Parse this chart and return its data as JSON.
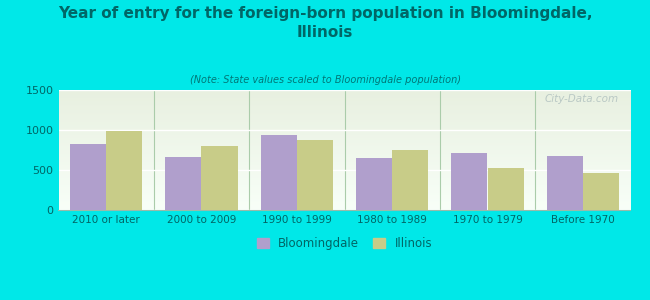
{
  "title": "Year of entry for the foreign-born population in Bloomingdale,\nIllinois",
  "subtitle": "(Note: State values scaled to Bloomingdale population)",
  "categories": [
    "2010 or later",
    "2000 to 2009",
    "1990 to 1999",
    "1980 to 1989",
    "1970 to 1979",
    "Before 1970"
  ],
  "bloomingdale_values": [
    830,
    665,
    940,
    650,
    715,
    680
  ],
  "illinois_values": [
    990,
    800,
    880,
    750,
    525,
    468
  ],
  "bloomingdale_color": "#b09fcc",
  "illinois_color": "#c8cc88",
  "background_color": "#00e8e8",
  "plot_bg_top": "#e8f0e0",
  "plot_bg_bottom": "#f8fff8",
  "ylim": [
    0,
    1500
  ],
  "yticks": [
    0,
    500,
    1000,
    1500
  ],
  "bar_width": 0.38,
  "legend_bloomingdale": "Bloomingdale",
  "legend_illinois": "Illinois",
  "watermark": "City-Data.com",
  "title_color": "#006666",
  "subtitle_color": "#007777",
  "tick_color": "#006666",
  "separator_color": "#aaccaa"
}
